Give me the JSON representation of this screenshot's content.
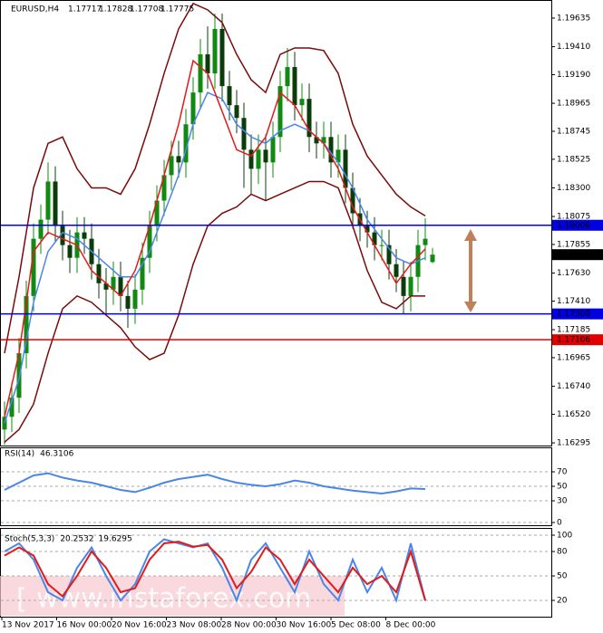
{
  "chart_data": [
    {
      "type": "candlestick",
      "title": "EURUSD,H4",
      "open": [
        1.164,
        1.165,
        1.1665,
        1.17,
        1.1745,
        1.179,
        1.1805,
        1.1835,
        1.18,
        1.1785,
        1.1775,
        1.1795,
        1.179,
        1.177,
        1.1755,
        1.175,
        1.176,
        1.1745,
        1.1735,
        1.175,
        1.1775,
        1.18,
        1.182,
        1.184,
        1.1855,
        1.185,
        1.188,
        1.1905,
        1.1935,
        1.192,
        1.1955,
        1.191,
        1.1895,
        1.1885,
        1.186,
        1.1845,
        1.186,
        1.185,
        1.187,
        1.191,
        1.1925,
        1.1895,
        1.19,
        1.187,
        1.1865,
        1.187,
        1.185,
        1.186,
        1.183,
        1.181,
        1.18,
        1.1795,
        1.1785,
        1.1785,
        1.177,
        1.176,
        1.1745,
        1.176,
        1.1785,
        1.17717
      ],
      "high": [
        1.1662,
        1.1677,
        1.1712,
        1.1757,
        1.1802,
        1.1817,
        1.185,
        1.1847,
        1.1812,
        1.1797,
        1.1807,
        1.1807,
        1.1802,
        1.1782,
        1.1767,
        1.1772,
        1.1772,
        1.1757,
        1.1762,
        1.1787,
        1.1812,
        1.1832,
        1.1852,
        1.1867,
        1.1867,
        1.1892,
        1.1917,
        1.1947,
        1.1957,
        1.1967,
        1.1967,
        1.1922,
        1.1907,
        1.1897,
        1.1872,
        1.1872,
        1.1872,
        1.1882,
        1.1922,
        1.194,
        1.1937,
        1.1912,
        1.1912,
        1.1882,
        1.1882,
        1.1882,
        1.1872,
        1.1872,
        1.1842,
        1.1822,
        1.1812,
        1.1807,
        1.1797,
        1.1797,
        1.1782,
        1.1772,
        1.1772,
        1.1797,
        1.1806,
        1.17828
      ],
      "low": [
        1.1628,
        1.1638,
        1.1653,
        1.1688,
        1.1733,
        1.1778,
        1.1793,
        1.1788,
        1.1773,
        1.1763,
        1.1763,
        1.1778,
        1.1758,
        1.1743,
        1.173,
        1.1738,
        1.1733,
        1.172,
        1.1723,
        1.1738,
        1.1763,
        1.1788,
        1.1808,
        1.1828,
        1.1838,
        1.1838,
        1.1868,
        1.1893,
        1.1908,
        1.1908,
        1.1898,
        1.1883,
        1.1873,
        1.183,
        1.1825,
        1.1833,
        1.182,
        1.1838,
        1.1858,
        1.1898,
        1.1883,
        1.1883,
        1.1858,
        1.1853,
        1.1853,
        1.1838,
        1.1838,
        1.1818,
        1.1798,
        1.1788,
        1.1783,
        1.1773,
        1.1773,
        1.1758,
        1.1748,
        1.1731,
        1.1733,
        1.1748,
        1.1773,
        1.17708
      ],
      "close": [
        1.165,
        1.1665,
        1.17,
        1.1745,
        1.179,
        1.1805,
        1.1835,
        1.18,
        1.1785,
        1.1775,
        1.1795,
        1.179,
        1.177,
        1.1755,
        1.175,
        1.176,
        1.1745,
        1.1735,
        1.175,
        1.1775,
        1.18,
        1.182,
        1.184,
        1.1855,
        1.185,
        1.188,
        1.1905,
        1.1935,
        1.192,
        1.1955,
        1.191,
        1.1895,
        1.1885,
        1.186,
        1.1845,
        1.186,
        1.185,
        1.187,
        1.191,
        1.1925,
        1.1895,
        1.19,
        1.187,
        1.1865,
        1.187,
        1.185,
        1.186,
        1.183,
        1.181,
        1.18,
        1.1795,
        1.1785,
        1.1785,
        1.177,
        1.176,
        1.1745,
        1.176,
        1.1785,
        1.179,
        1.17775
      ],
      "bull_color": "#118a11",
      "bear_color": "#0b3d0b",
      "overlays": [
        {
          "color": "#7a0a0a",
          "values": [
            1.17,
            1.176,
            1.183,
            1.1865,
            1.187,
            1.1845,
            1.183,
            1.183,
            1.1825,
            1.1845,
            1.188,
            1.192,
            1.1955,
            1.1975,
            1.197,
            1.196,
            1.1935,
            1.1915,
            1.1905,
            1.1935,
            1.194,
            1.194,
            1.1938,
            1.192,
            1.188,
            1.1855,
            1.184,
            1.1825,
            1.1815,
            1.1808
          ]
        },
        {
          "color": "#7a0a0a",
          "values": [
            1.163,
            1.164,
            1.166,
            1.17,
            1.1735,
            1.1745,
            1.174,
            1.173,
            1.172,
            1.1705,
            1.1695,
            1.17,
            1.173,
            1.177,
            1.18,
            1.181,
            1.1815,
            1.1825,
            1.182,
            1.1825,
            1.183,
            1.1835,
            1.1835,
            1.183,
            1.18,
            1.1765,
            1.174,
            1.1735,
            1.1745,
            1.1745
          ]
        },
        {
          "color": "#4a86e8",
          "values": [
            1.1645,
            1.168,
            1.174,
            1.178,
            1.1795,
            1.179,
            1.178,
            1.177,
            1.176,
            1.176,
            1.178,
            1.181,
            1.184,
            1.188,
            1.1905,
            1.19,
            1.188,
            1.187,
            1.1865,
            1.1875,
            1.188,
            1.1875,
            1.1865,
            1.185,
            1.183,
            1.1805,
            1.179,
            1.1775,
            1.177,
            1.1775
          ]
        },
        {
          "color": "#e31a1a",
          "values": [
            1.165,
            1.17,
            1.178,
            1.1795,
            1.179,
            1.1785,
            1.1765,
            1.1755,
            1.1745,
            1.1765,
            1.18,
            1.184,
            1.188,
            1.193,
            1.192,
            1.189,
            1.186,
            1.1855,
            1.187,
            1.1905,
            1.1895,
            1.1875,
            1.1865,
            1.1845,
            1.1815,
            1.1795,
            1.1775,
            1.1755,
            1.177,
            1.1782
          ]
        }
      ],
      "levels": [
        {
          "value": 1.18006,
          "color": "#0000e0"
        },
        {
          "value": 1.17309,
          "color": "#0000e0"
        },
        {
          "value": 1.17106,
          "color": "#e00000"
        }
      ],
      "ylim": [
        1.16274,
        1.19763
      ],
      "yticks": [
        1.19635,
        {
          "value": 1.1941,
          "label": "1.19410"
        },
        {
          "value": 1.1919,
          "label": "1.19190"
        },
        1.18965,
        1.18745,
        1.18525,
        {
          "value": 1.183,
          "label": "1.18300"
        },
        1.18075,
        1.17855,
        {
          "value": 1.1763,
          "label": "1.17630"
        },
        {
          "value": 1.1741,
          "label": "1.17410"
        },
        1.17185,
        1.16965,
        {
          "value": 1.1674,
          "label": "1.16740"
        },
        {
          "value": 1.1652,
          "label": "1.16520"
        },
        1.16295
      ],
      "x_labels": [
        "13 Nov 2017",
        "16 Nov 00:00",
        "20 Nov 16:00",
        "23 Nov 08:00",
        "28 Nov 00:00",
        "30 Nov 16:00",
        "5 Dec 08:00",
        "8 Dec 00:00"
      ]
    },
    {
      "type": "line",
      "title": "RSI(14)",
      "ylim": [
        0,
        100
      ],
      "yticks": [
        0,
        30,
        50,
        70
      ],
      "series": [
        {
          "color": "#4a86e8",
          "values": [
            45,
            55,
            65,
            68,
            62,
            58,
            55,
            50,
            45,
            42,
            48,
            55,
            60,
            63,
            66,
            60,
            55,
            52,
            50,
            53,
            58,
            55,
            50,
            47,
            44,
            42,
            40,
            43,
            47,
            46.3106
          ]
        }
      ]
    },
    {
      "type": "line",
      "title": "Stoch(5,3,3)",
      "ylim": [
        0,
        100
      ],
      "yticks": [
        20,
        50,
        80,
        100
      ],
      "series": [
        {
          "color": "#4a86e8",
          "values": [
            80,
            90,
            70,
            30,
            20,
            60,
            85,
            50,
            20,
            40,
            80,
            95,
            90,
            85,
            90,
            60,
            20,
            70,
            90,
            60,
            30,
            80,
            40,
            20,
            70,
            30,
            60,
            20,
            90,
            20.2532
          ]
        },
        {
          "color": "#e31a1a",
          "values": [
            75,
            85,
            75,
            40,
            25,
            50,
            80,
            60,
            30,
            35,
            70,
            90,
            92,
            86,
            88,
            70,
            35,
            55,
            85,
            70,
            40,
            70,
            50,
            30,
            60,
            40,
            50,
            30,
            80,
            19.6295
          ]
        }
      ]
    }
  ],
  "watermark": "www.instaforex.com"
}
